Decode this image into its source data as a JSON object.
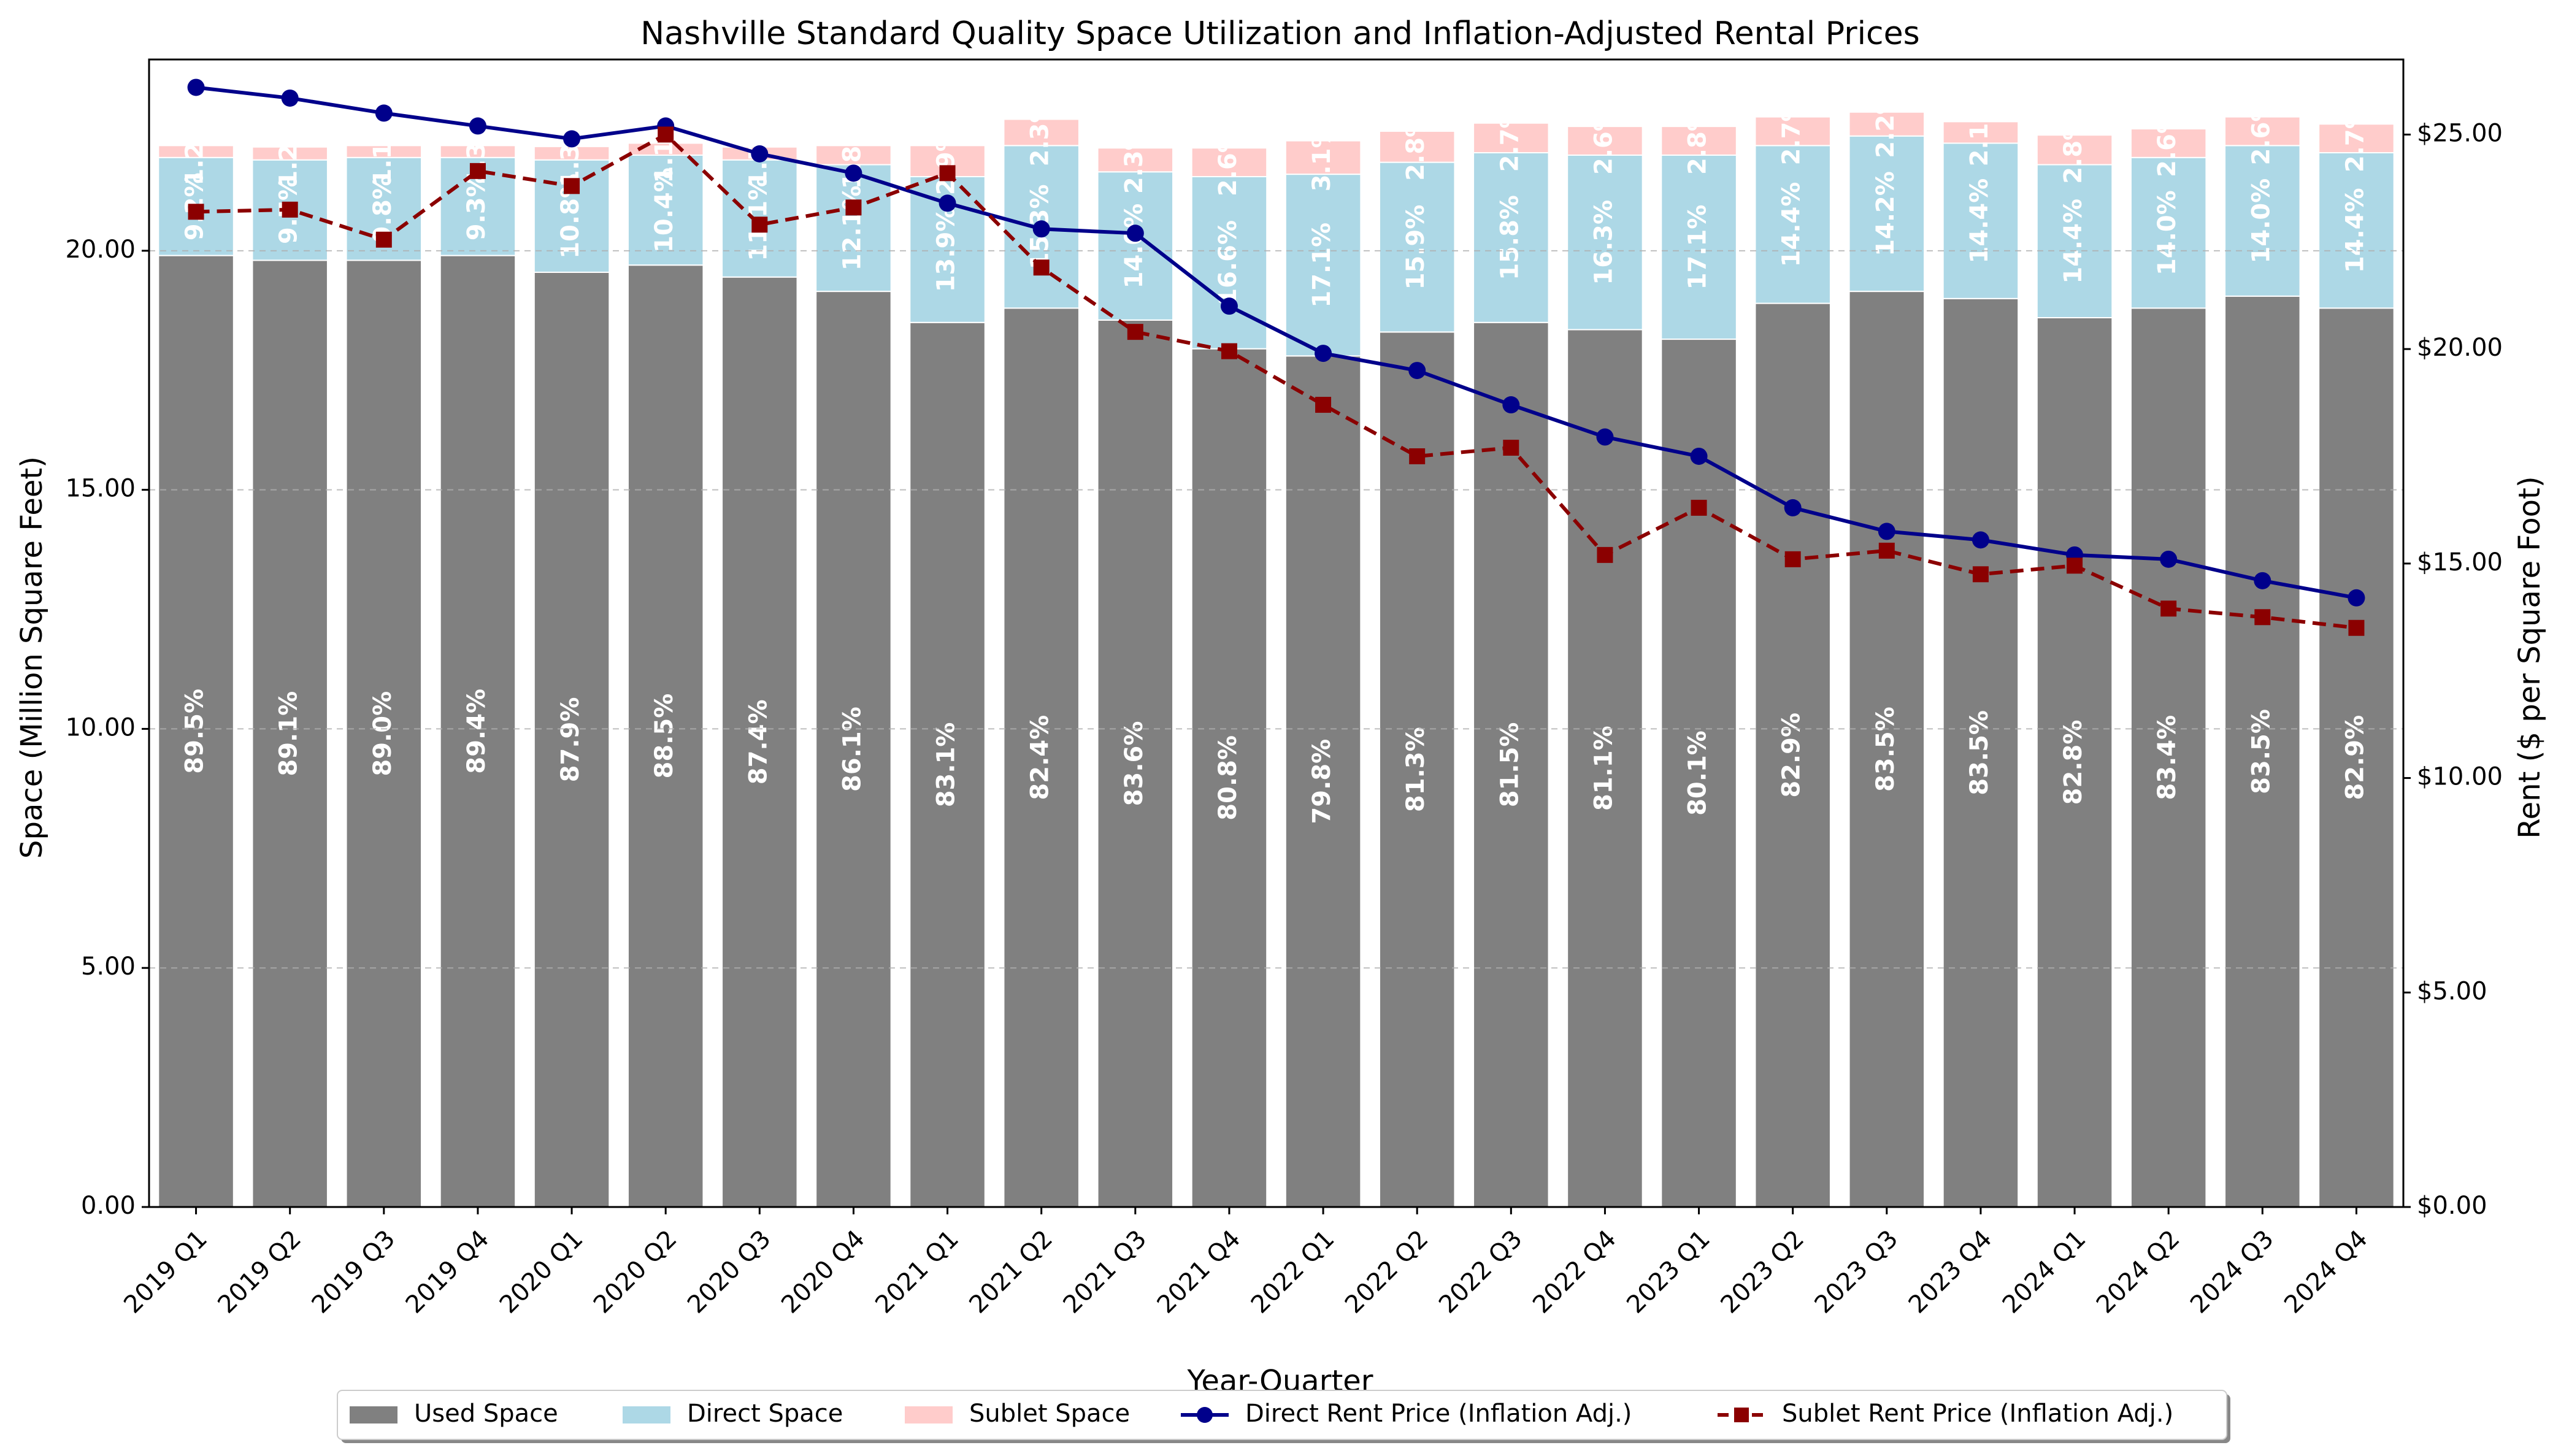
{
  "chart_data": {
    "type": "bar+line",
    "title": "Nashville Standard Quality Space Utilization and Inflation-Adjusted Rental Prices",
    "xlabel": "Year-Quarter",
    "ylabel_left": "Space (Million Square Feet)",
    "ylabel_right": "Rent ($ per Square Foot)",
    "ylim_left": [
      0,
      24
    ],
    "ylim_right": [
      0,
      26.75
    ],
    "yticks_left": [
      "0.00",
      "5.00",
      "10.00",
      "15.00",
      "20.00"
    ],
    "yticks_right": [
      "$0.00",
      "$5.00",
      "$10.00",
      "$15.00",
      "$20.00",
      "$25.00"
    ],
    "grid": "horizontal dashed",
    "legend_position": "bottom-center",
    "categories": [
      "2019 Q1",
      "2019 Q2",
      "2019 Q3",
      "2019 Q4",
      "2020 Q1",
      "2020 Q2",
      "2020 Q3",
      "2020 Q4",
      "2021 Q1",
      "2021 Q2",
      "2021 Q3",
      "2021 Q4",
      "2022 Q1",
      "2022 Q2",
      "2022 Q3",
      "2022 Q4",
      "2023 Q1",
      "2023 Q2",
      "2023 Q3",
      "2023 Q4",
      "2024 Q1",
      "2024 Q2",
      "2024 Q3",
      "2024 Q4"
    ],
    "bar_series": [
      {
        "name": "Used Space",
        "color": "#808080",
        "values": [
          19.9,
          19.8,
          19.8,
          19.9,
          19.55,
          19.7,
          19.45,
          19.15,
          18.5,
          18.8,
          18.55,
          17.95,
          17.8,
          18.3,
          18.5,
          18.35,
          18.15,
          18.9,
          19.15,
          19.0,
          18.6,
          18.8,
          19.05,
          18.8
        ],
        "labels": [
          "89.5%",
          "89.1%",
          "89.0%",
          "89.4%",
          "87.9%",
          "88.5%",
          "87.4%",
          "86.1%",
          "83.1%",
          "82.4%",
          "83.6%",
          "80.8%",
          "79.8%",
          "81.3%",
          "81.5%",
          "81.1%",
          "80.1%",
          "82.9%",
          "83.5%",
          "83.5%",
          "82.8%",
          "83.4%",
          "83.5%",
          "82.9%"
        ]
      },
      {
        "name": "Direct Space",
        "color": "#add8e6",
        "values": [
          2.05,
          2.1,
          2.15,
          2.05,
          2.35,
          2.3,
          2.45,
          2.65,
          3.05,
          3.4,
          3.1,
          3.6,
          3.8,
          3.55,
          3.55,
          3.65,
          3.85,
          3.3,
          3.25,
          3.25,
          3.2,
          3.15,
          3.15,
          3.25
        ],
        "labels": [
          "9.2%",
          "9.7%",
          "9.8%",
          "9.3%",
          "10.8%",
          "10.4%",
          "11.1%",
          "12.1%",
          "13.9%",
          "15.3%",
          "14.0%",
          "16.6%",
          "17.1%",
          "15.9%",
          "15.8%",
          "16.3%",
          "17.1%",
          "14.4%",
          "14.2%",
          "14.4%",
          "14.4%",
          "14.0%",
          "14.0%",
          "14.4%"
        ]
      },
      {
        "name": "Sublet Space",
        "color": "#ffcccb",
        "values": [
          0.25,
          0.27,
          0.25,
          0.25,
          0.28,
          0.25,
          0.27,
          0.4,
          0.65,
          0.55,
          0.5,
          0.6,
          0.7,
          0.65,
          0.62,
          0.6,
          0.6,
          0.6,
          0.5,
          0.45,
          0.62,
          0.6,
          0.6,
          0.6
        ],
        "labels": [
          "1.2%",
          "1.2%",
          "1.1%",
          "1.3%",
          "1.3%",
          "1.1%",
          "1.5%",
          "1.8%",
          "2.9%",
          "2.3%",
          "2.3%",
          "2.6%",
          "3.1%",
          "2.8%",
          "2.7%",
          "2.6%",
          "2.8%",
          "2.7%",
          "2.2%",
          "2.1%",
          "2.8%",
          "2.6%",
          "2.6%",
          "2.7%"
        ]
      }
    ],
    "line_series": [
      {
        "name": "Direct Rent Price (Inflation Adj.)",
        "color": "#00008b",
        "axis": "right",
        "style": "solid",
        "marker": "circle",
        "values": [
          26.1,
          25.85,
          25.5,
          25.2,
          24.9,
          25.2,
          24.55,
          24.1,
          23.4,
          22.8,
          22.7,
          21.0,
          19.9,
          19.5,
          18.7,
          17.95,
          17.5,
          16.3,
          15.75,
          15.55,
          15.2,
          15.1,
          14.6,
          14.2
        ]
      },
      {
        "name": "Sublet Rent Price (Inflation Adj.)",
        "color": "#8b0000",
        "axis": "right",
        "style": "dashed",
        "marker": "square",
        "values": [
          23.2,
          23.25,
          22.55,
          24.15,
          23.8,
          25.0,
          22.9,
          23.3,
          24.1,
          21.9,
          20.4,
          19.95,
          18.7,
          17.5,
          17.7,
          15.2,
          16.3,
          15.1,
          15.3,
          14.75,
          14.95,
          13.95,
          13.75,
          13.5
        ]
      }
    ]
  }
}
